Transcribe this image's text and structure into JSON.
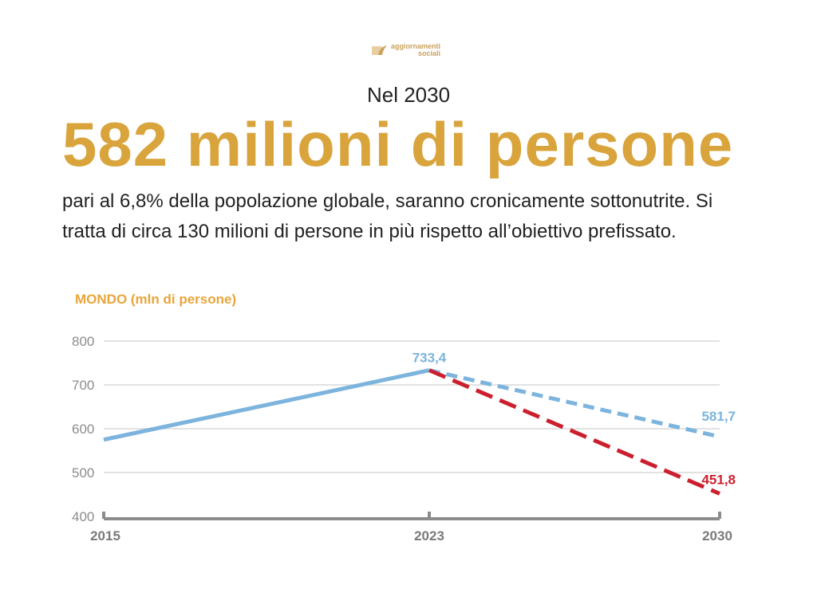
{
  "logo": {
    "line1": "aggiornamenti",
    "line2": "sociali"
  },
  "kicker": "Nel 2030",
  "headline": "582 milioni di persone",
  "body": "pari al 6,8% della popolazione globale, saranno cronicamente sottonutrite. Si tratta di circa 130 milioni di persone in più rispetto all’obiettivo prefissato.",
  "colors": {
    "gold": "#d9a43c",
    "blue": "#7cb4dd",
    "red": "#cc1f2e",
    "grid": "#d9d9d9",
    "axis": "#8c8c8c"
  },
  "chart_data": {
    "type": "line",
    "title": "MONDO (mln di persone)",
    "xlabel": "",
    "ylabel": "",
    "ylim": [
      400,
      800
    ],
    "yticks": [
      400,
      500,
      600,
      700,
      800
    ],
    "x": [
      "2015",
      "2023",
      "2030"
    ],
    "grid": true,
    "series": [
      {
        "name": "",
        "style": "solid",
        "color": "#7cb4dd",
        "points": [
          [
            2015,
            575
          ],
          [
            2023,
            733.4
          ]
        ]
      },
      {
        "name": "",
        "style": "dashed",
        "color": "#7cb4dd",
        "points": [
          [
            2023,
            733.4
          ],
          [
            2030,
            581.7
          ]
        ]
      },
      {
        "name": "",
        "style": "dashed",
        "color": "#cc1f2e",
        "points": [
          [
            2023,
            733.4
          ],
          [
            2030,
            451.8
          ]
        ]
      }
    ],
    "annotations": [
      {
        "x": 2023,
        "y": 733.4,
        "text": "733,4",
        "color": "#7cb4dd"
      },
      {
        "x": 2030,
        "y": 581.7,
        "text": "581,7",
        "color": "#7cb4dd"
      },
      {
        "x": 2030,
        "y": 451.8,
        "text": "451,8",
        "color": "#cc1f2e"
      }
    ]
  }
}
